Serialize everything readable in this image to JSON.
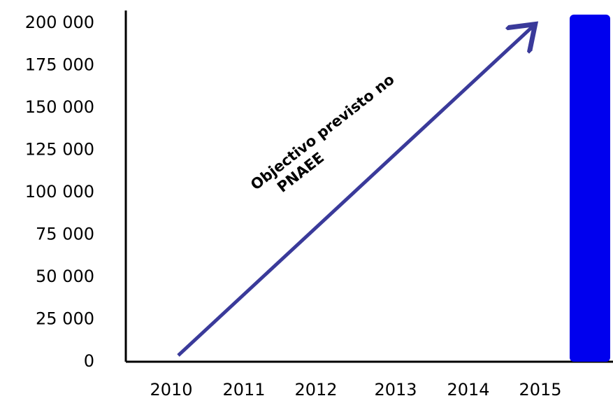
{
  "chart_data": {
    "type": "bar",
    "categories": [
      "2010",
      "2011",
      "2012",
      "2013",
      "2014",
      "2015",
      null
    ],
    "values": [
      null,
      null,
      null,
      null,
      null,
      null,
      205000
    ],
    "color": "#0000ee",
    "annotation": [
      "Objectivo previsto no",
      "PNAEE"
    ],
    "ylim": [
      0,
      200000
    ],
    "yticks": [
      0,
      {
        "value": 25000,
        "label": "25 000"
      },
      {
        "value": 50000,
        "label": "50 000"
      },
      {
        "value": 75000,
        "label": "75 000"
      },
      {
        "value": 100000,
        "label": "100 000"
      },
      {
        "value": 125000,
        "label": "125 000"
      },
      {
        "value": 150000,
        "label": "150 000"
      },
      {
        "value": 175000,
        "label": "175 000"
      },
      {
        "value": 200000,
        "label": "200 000"
      }
    ],
    "grid": false
  }
}
